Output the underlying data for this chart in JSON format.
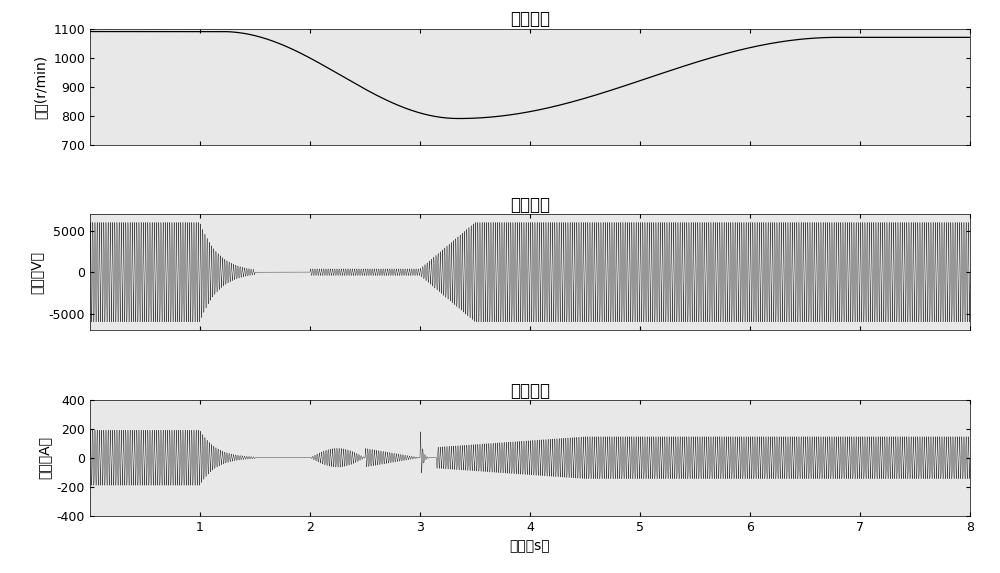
{
  "title1": "转子转速",
  "title2": "定子电压",
  "title3": "定子电流",
  "ylabel1": "转速(r/min)",
  "ylabel2": "电压（V）",
  "ylabel3": "电流（A）",
  "xlabel": "时间（s）",
  "xlim": [
    0,
    8
  ],
  "ylim1": [
    700,
    1100
  ],
  "ylim2": [
    -7000,
    7000
  ],
  "ylim3": [
    -400,
    400
  ],
  "yticks1": [
    700,
    800,
    900,
    1000,
    1100
  ],
  "yticks2": [
    -5000,
    0,
    5000
  ],
  "yticks3": [
    -400,
    -200,
    0,
    200,
    400
  ],
  "xticks": [
    1,
    2,
    3,
    4,
    5,
    6,
    7,
    8
  ],
  "speed_init": 1090,
  "speed_min": 790,
  "speed_final": 1070,
  "t_flat_end": 1.2,
  "t_drop_end": 3.35,
  "t_rise_end": 6.8,
  "bg_color": "#ffffff",
  "ax_bg_color": "#e8e8e8",
  "line_color": "#000000",
  "voltage_amplitude": 6000,
  "current_amplitude_init": 190,
  "current_amplitude_final": 145,
  "title_fontsize": 12,
  "label_fontsize": 10,
  "tick_fontsize": 9
}
